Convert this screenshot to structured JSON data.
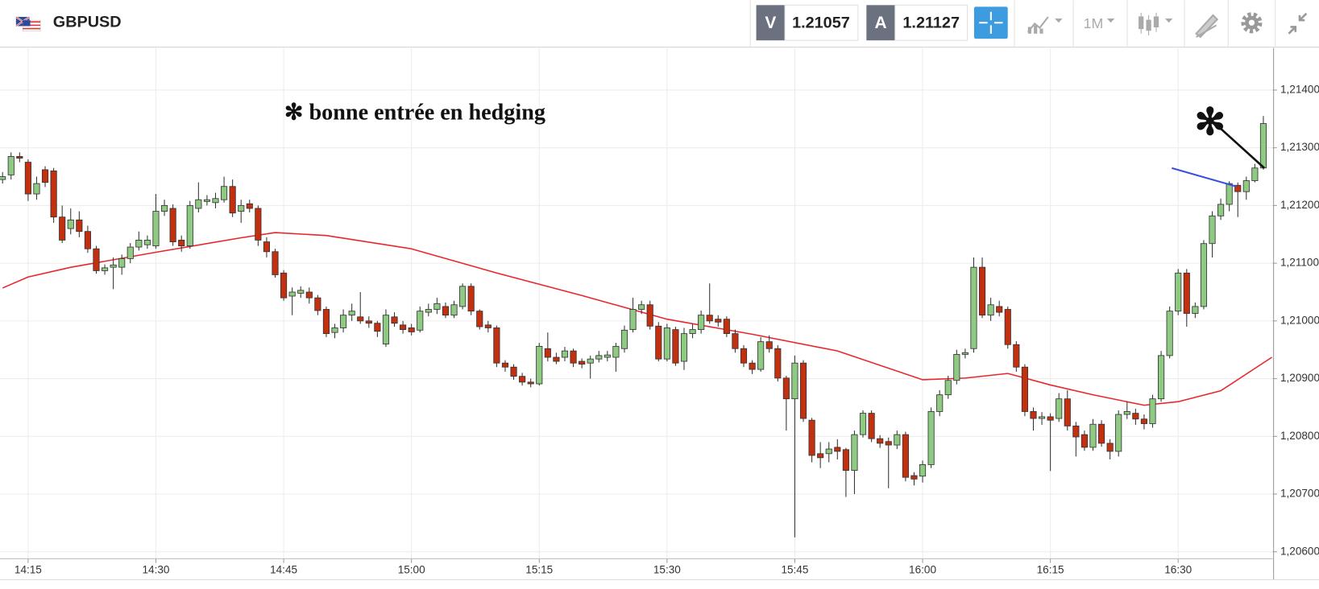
{
  "toolbar": {
    "symbol": "GBPUSD",
    "sell_label": "V",
    "sell_price": "1.21057",
    "buy_label": "A",
    "buy_price": "1.21127",
    "timeframe": "1M"
  },
  "chart_data": {
    "type": "candlestick",
    "annotations": [
      "✻ bonne entrée en hedging",
      "✻"
    ],
    "up_color": "#8fca82",
    "down_color": "#c2300f",
    "x": [
      852,
      853,
      854,
      855,
      856,
      857,
      858,
      859,
      860,
      861,
      862,
      863,
      864,
      865,
      866,
      867,
      868,
      869,
      870,
      871,
      872,
      873,
      874,
      875,
      876,
      877,
      878,
      879,
      880,
      881,
      882,
      883,
      884,
      885,
      886,
      887,
      888,
      889,
      890,
      891,
      892,
      893,
      894,
      895,
      896,
      897,
      898,
      899,
      900,
      901,
      902,
      903,
      904,
      905,
      906,
      907,
      908,
      909,
      910,
      911,
      912,
      913,
      914,
      915,
      916,
      917,
      918,
      919,
      920,
      921,
      922,
      923,
      924,
      925,
      926,
      927,
      928,
      929,
      930,
      931,
      932,
      933,
      934,
      935,
      936,
      937,
      938,
      939,
      940,
      941,
      942,
      943,
      944,
      945,
      946,
      947,
      948,
      949,
      950,
      951,
      952,
      953,
      954,
      955,
      956,
      957,
      958,
      959,
      960,
      961,
      962,
      963,
      964,
      965,
      966,
      967,
      968,
      969,
      970,
      971,
      972,
      973,
      974,
      975,
      976,
      977,
      978,
      979,
      980,
      981,
      982,
      983,
      984,
      985,
      986,
      987,
      988,
      989,
      990,
      991,
      992,
      993,
      994,
      995,
      996,
      997,
      998,
      999,
      1000
    ],
    "open": [
      1.21245,
      1.21253,
      1.21285,
      1.21275,
      1.2122,
      1.21262,
      1.2126,
      1.2118,
      1.2116,
      1.21175,
      1.21155,
      1.21125,
      1.21087,
      1.21093,
      1.21093,
      1.21108,
      1.21128,
      1.21132,
      1.2113,
      1.2119,
      1.21195,
      1.2114,
      1.2113,
      1.21195,
      1.21207,
      1.21205,
      1.2121,
      1.21233,
      1.2119,
      1.21203,
      1.21195,
      1.21137,
      1.2112,
      1.21083,
      1.21043,
      1.21048,
      1.2105,
      1.2104,
      1.2102,
      1.2098,
      1.20988,
      1.2101,
      1.21007,
      1.21,
      1.20996,
      1.2096,
      1.21007,
      1.20993,
      1.20988,
      1.20984,
      1.21015,
      1.2102,
      1.21025,
      1.2101,
      1.21025,
      1.2106,
      1.21017,
      1.20993,
      1.20988,
      1.20927,
      1.2092,
      1.20904,
      1.20894,
      1.20891,
      1.20952,
      1.20937,
      1.20937,
      1.20948,
      1.2093,
      1.20927,
      1.20934,
      1.20937,
      1.20937,
      1.20952,
      1.20985,
      1.2102,
      1.21028,
      1.20991,
      1.20934,
      1.20985,
      1.2093,
      1.20978,
      1.20985,
      1.2101,
      1.21003,
      1.21003,
      1.20978,
      1.20952,
      1.20927,
      1.20916,
      1.20964,
      1.20952,
      1.20901,
      1.20865,
      1.20927,
      1.20828,
      1.2077,
      1.2077,
      1.20781,
      1.20777,
      1.20741,
      1.20803,
      1.2084,
      1.20796,
      1.20791,
      1.20785,
      1.20803,
      1.20732,
      1.20731,
      1.20751,
      1.20843,
      1.20872,
      1.20897,
      1.20942,
      1.20952,
      1.21093,
      1.2101,
      1.21025,
      1.2102,
      1.20959,
      1.2092,
      1.20843,
      1.20831,
      1.20834,
      1.20831,
      1.20865,
      1.20818,
      1.20803,
      1.20781,
      1.20821,
      1.20788,
      1.20774,
      1.20838,
      1.2084,
      1.2083,
      1.20822,
      1.20865,
      1.2094,
      1.21017,
      1.21083,
      1.21013,
      1.21025,
      1.21134,
      1.21182,
      1.21202,
      1.21235,
      1.21224,
      1.21243,
      1.21265
    ],
    "high": [
      1.21258,
      1.21292,
      1.21292,
      1.2128,
      1.2125,
      1.21268,
      1.21265,
      1.212,
      1.21195,
      1.2119,
      1.21165,
      1.2113,
      1.21098,
      1.2111,
      1.21115,
      1.21135,
      1.21155,
      1.21148,
      1.2122,
      1.2121,
      1.21202,
      1.21148,
      1.21208,
      1.2124,
      1.21218,
      1.21222,
      1.2125,
      1.21245,
      1.2121,
      1.2121,
      1.212,
      1.21145,
      1.21125,
      1.21088,
      1.21058,
      1.2106,
      1.21058,
      1.21045,
      1.21025,
      1.20995,
      1.2102,
      1.2103,
      1.2105,
      1.21008,
      1.21,
      1.2102,
      1.21015,
      1.21,
      1.20995,
      1.21025,
      1.2103,
      1.2104,
      1.21032,
      1.21035,
      1.21065,
      1.21065,
      1.2102,
      1.21,
      1.20992,
      1.20932,
      1.20925,
      1.2091,
      1.209,
      1.20962,
      1.2098,
      1.20945,
      1.20955,
      1.20952,
      1.20935,
      1.2094,
      1.20948,
      1.20948,
      1.20962,
      1.20992,
      1.2104,
      1.21035,
      1.21035,
      1.20998,
      1.20995,
      1.2099,
      1.20988,
      1.20995,
      1.21018,
      1.21065,
      1.2101,
      1.21008,
      1.20985,
      1.20958,
      1.20932,
      1.20972,
      1.20975,
      1.20958,
      1.20905,
      1.2094,
      1.20932,
      1.20832,
      1.2079,
      1.2079,
      1.20795,
      1.2078,
      1.2081,
      1.20845,
      1.20845,
      1.20802,
      1.20798,
      1.2081,
      1.20808,
      1.20738,
      1.20758,
      1.2085,
      1.2088,
      1.20905,
      1.2095,
      1.20952,
      1.2111,
      1.2111,
      1.2104,
      1.21035,
      1.21025,
      1.20965,
      1.20925,
      1.2085,
      1.20842,
      1.2084,
      1.20875,
      1.2088,
      1.20825,
      1.2081,
      1.2083,
      1.20828,
      1.20795,
      1.20845,
      1.2086,
      1.20848,
      1.20838,
      1.20872,
      1.20948,
      1.21025,
      1.2109,
      1.2109,
      1.21032,
      1.2114,
      1.2119,
      1.21212,
      1.21242,
      1.2124,
      1.2125,
      1.21272,
      1.21355
    ],
    "low": [
      1.21238,
      1.21245,
      1.21275,
      1.21208,
      1.2121,
      1.21232,
      1.2117,
      1.21135,
      1.2115,
      1.21145,
      1.21118,
      1.21082,
      1.2108,
      1.21055,
      1.2108,
      1.211,
      1.21122,
      1.21125,
      1.21125,
      1.21182,
      1.2113,
      1.2112,
      1.21125,
      1.21188,
      1.212,
      1.21195,
      1.21205,
      1.2118,
      1.2117,
      1.21188,
      1.2113,
      1.2111,
      1.21075,
      1.21035,
      1.2101,
      1.2104,
      1.2103,
      1.2101,
      1.20972,
      1.2097,
      1.2098,
      1.21,
      1.20995,
      1.20988,
      1.20972,
      1.20955,
      1.2099,
      1.20978,
      1.20975,
      1.2098,
      1.21008,
      1.21012,
      1.21005,
      1.21005,
      1.2102,
      1.2101,
      1.20985,
      1.2098,
      1.2092,
      1.20912,
      1.20898,
      1.20888,
      1.20885,
      1.20888,
      1.2093,
      1.20925,
      1.2093,
      1.2092,
      1.20918,
      1.209,
      1.20928,
      1.2093,
      1.20912,
      1.20945,
      1.2098,
      1.21012,
      1.20985,
      1.2093,
      1.2093,
      1.20922,
      1.20915,
      1.2097,
      1.20978,
      1.20995,
      1.2099,
      1.20972,
      1.20945,
      1.2092,
      1.20908,
      1.20912,
      1.20945,
      1.20895,
      1.2081,
      1.20625,
      1.20825,
      1.20755,
      1.20745,
      1.20755,
      1.2076,
      1.20695,
      1.207,
      1.20798,
      1.2079,
      1.2078,
      1.2071,
      1.20778,
      1.20722,
      1.20715,
      1.2072,
      1.20745,
      1.20835,
      1.20865,
      1.2089,
      1.20935,
      1.20945,
      1.21005,
      1.21,
      1.21008,
      1.20952,
      1.20912,
      1.20835,
      1.2081,
      1.2082,
      1.2074,
      1.20825,
      1.2081,
      1.20765,
      1.20775,
      1.20775,
      1.20782,
      1.2076,
      1.20765,
      1.2083,
      1.2082,
      1.20812,
      1.20815,
      1.2086,
      1.20935,
      1.2101,
      1.2099,
      1.21005,
      1.2102,
      1.2111,
      1.21175,
      1.2119,
      1.2118,
      1.2121,
      1.2124,
      1.21262
    ],
    "close": [
      1.2125,
      1.21285,
      1.21282,
      1.2122,
      1.21238,
      1.2124,
      1.2118,
      1.2114,
      1.21175,
      1.21155,
      1.21125,
      1.21087,
      1.21092,
      1.21097,
      1.21108,
      1.21128,
      1.2114,
      1.2114,
      1.2119,
      1.212,
      1.21137,
      1.2113,
      1.212,
      1.2121,
      1.2121,
      1.21212,
      1.21233,
      1.21187,
      1.212,
      1.21195,
      1.2114,
      1.2112,
      1.2108,
      1.2104,
      1.2105,
      1.21053,
      1.2104,
      1.21018,
      1.20978,
      1.20988,
      1.2101,
      1.21017,
      1.21,
      1.20996,
      1.20982,
      1.2101,
      1.20996,
      1.20985,
      1.20981,
      1.21017,
      1.2102,
      1.2103,
      1.2101,
      1.21028,
      1.2106,
      1.21017,
      1.2099,
      1.20988,
      1.20927,
      1.2092,
      1.20904,
      1.20894,
      1.20891,
      1.20956,
      1.20937,
      1.2093,
      1.20948,
      1.20927,
      1.20925,
      1.20934,
      1.2094,
      1.20941,
      1.20956,
      1.20984,
      1.2102,
      1.21028,
      1.20991,
      1.20934,
      1.20988,
      1.20927,
      1.20978,
      1.20985,
      1.2101,
      1.21,
      1.20998,
      1.20978,
      1.20952,
      1.20927,
      1.20916,
      1.20964,
      1.20952,
      1.20901,
      1.20865,
      1.20927,
      1.20831,
      1.20767,
      1.20763,
      1.20778,
      1.20774,
      1.20741,
      1.20803,
      1.2084,
      1.20796,
      1.20788,
      1.20785,
      1.20803,
      1.20729,
      1.20726,
      1.20751,
      1.20843,
      1.20872,
      1.20897,
      1.20942,
      1.20945,
      1.21093,
      1.2101,
      1.21028,
      1.21015,
      1.20959,
      1.2092,
      1.20843,
      1.20831,
      1.20834,
      1.20828,
      1.20865,
      1.20818,
      1.20799,
      1.20781,
      1.20821,
      1.20788,
      1.20774,
      1.20838,
      1.20843,
      1.2083,
      1.20822,
      1.20865,
      1.2094,
      1.21017,
      1.21083,
      1.21013,
      1.21025,
      1.21134,
      1.21182,
      1.21202,
      1.21238,
      1.21224,
      1.21243,
      1.21265,
      1.21342
    ],
    "ma": {
      "color": "#e8262b",
      "x": [
        852,
        855,
        860,
        870,
        880,
        884,
        890,
        900,
        910,
        920,
        930,
        940,
        950,
        960,
        965,
        970,
        975,
        980,
        986,
        990,
        995,
        1001
      ],
      "values": [
        1.21057,
        1.21076,
        1.21093,
        1.21119,
        1.21144,
        1.21153,
        1.21148,
        1.21125,
        1.21083,
        1.21044,
        1.21003,
        1.20977,
        1.20948,
        1.20898,
        1.20901,
        1.20909,
        1.20889,
        1.20872,
        1.20854,
        1.2086,
        1.20879,
        1.20937
      ]
    },
    "xlim": [
      851.7,
      1001.1
    ],
    "xticks": [
      {
        "value": 855,
        "label": "14:15"
      },
      {
        "value": 870,
        "label": "14:30"
      },
      {
        "value": 885,
        "label": "14:45"
      },
      {
        "value": 900,
        "label": "15:00"
      },
      {
        "value": 915,
        "label": "15:15"
      },
      {
        "value": 930,
        "label": "15:30"
      },
      {
        "value": 945,
        "label": "15:45"
      },
      {
        "value": 960,
        "label": "16:00"
      },
      {
        "value": 975,
        "label": "16:15"
      },
      {
        "value": 990,
        "label": "16:30"
      }
    ],
    "ylim": [
      1.20588,
      1.21473
    ],
    "yticks": [
      {
        "value": 1.214,
        "label": "1,21400"
      },
      {
        "value": 1.213,
        "label": "1,21300"
      },
      {
        "value": 1.212,
        "label": "1,21200"
      },
      {
        "value": 1.211,
        "label": "1,21100"
      },
      {
        "value": 1.21,
        "label": "1,21000"
      },
      {
        "value": 1.209,
        "label": "1,20900"
      },
      {
        "value": 1.208,
        "label": "1,20800"
      },
      {
        "value": 1.207,
        "label": "1,20700"
      },
      {
        "value": 1.206,
        "label": "1,20600"
      }
    ],
    "grid": true
  }
}
